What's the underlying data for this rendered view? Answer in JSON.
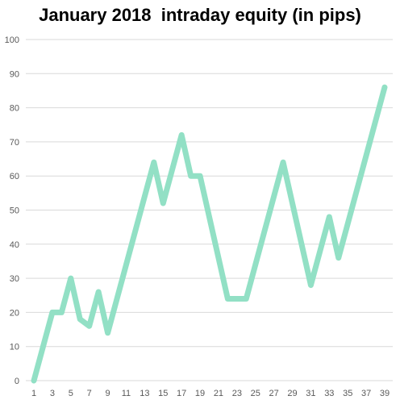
{
  "chart_data": {
    "type": "line",
    "title": "January 2018  intraday equity (in pips)",
    "xlabel": "",
    "ylabel": "",
    "x": [
      1,
      2,
      3,
      4,
      5,
      6,
      7,
      8,
      9,
      10,
      11,
      12,
      13,
      14,
      15,
      16,
      17,
      18,
      19,
      20,
      21,
      22,
      23,
      24,
      25,
      26,
      27,
      28,
      29,
      30,
      31,
      32,
      33,
      34,
      35,
      36,
      37,
      38,
      39
    ],
    "x_tick_labels": [
      "1",
      "3",
      "5",
      "7",
      "9",
      "11",
      "13",
      "15",
      "17",
      "19",
      "21",
      "23",
      "25",
      "27",
      "29",
      "31",
      "33",
      "35",
      "37",
      "39"
    ],
    "series": [
      {
        "values": [
          0,
          10,
          20,
          20,
          30,
          18,
          16,
          26,
          14,
          24,
          34,
          44,
          54,
          64,
          52,
          62,
          72,
          60,
          60,
          48,
          36,
          24,
          24,
          24,
          34,
          44,
          54,
          64,
          52,
          40,
          28,
          38,
          48,
          36,
          46,
          56,
          66,
          76,
          86
        ]
      }
    ],
    "ylim": [
      0,
      100
    ],
    "y_ticks": [
      0,
      10,
      20,
      30,
      40,
      50,
      60,
      70,
      80,
      90,
      100
    ],
    "grid": "horizontal",
    "legend": "none",
    "colors": {
      "line": "#92E0C5",
      "grid": "#D9D9D9",
      "text": "#595959"
    }
  }
}
